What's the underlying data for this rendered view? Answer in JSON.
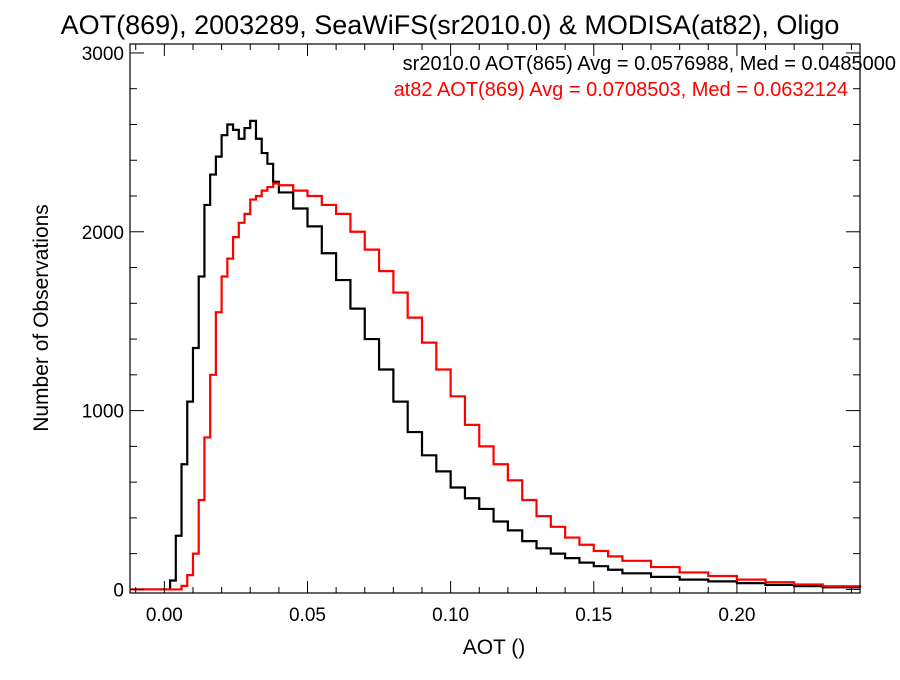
{
  "chart_data": {
    "type": "line",
    "title": "AOT(869), 2003289, SeaWiFS(sr2010.0) & MODISA(at82), Oligo",
    "xlabel": "AOT ()",
    "ylabel": "Number of Observations",
    "xlim": [
      -0.012,
      0.243
    ],
    "ylim": [
      -20,
      3050
    ],
    "x_ticks": [
      0.0,
      0.05,
      0.1,
      0.15,
      0.2
    ],
    "x_tick_labels": [
      "0.00",
      "0.05",
      "0.10",
      "0.15",
      "0.20"
    ],
    "y_ticks": [
      0,
      1000,
      2000,
      3000
    ],
    "y_tick_labels": [
      "0",
      "1000",
      "2000",
      "3000"
    ],
    "grid": false,
    "legend_position": "top-right",
    "series": [
      {
        "name": "sr2010.0 AOT(865) Avg = 0.0576988, Med = 0.0485000",
        "color": "#000000",
        "step": true,
        "x": [
          -0.012,
          0.0,
          0.002,
          0.004,
          0.006,
          0.008,
          0.01,
          0.012,
          0.014,
          0.016,
          0.018,
          0.02,
          0.022,
          0.024,
          0.026,
          0.028,
          0.03,
          0.032,
          0.034,
          0.036,
          0.038,
          0.04,
          0.045,
          0.05,
          0.055,
          0.06,
          0.065,
          0.07,
          0.075,
          0.08,
          0.085,
          0.09,
          0.095,
          0.1,
          0.105,
          0.11,
          0.115,
          0.12,
          0.125,
          0.13,
          0.135,
          0.14,
          0.145,
          0.15,
          0.155,
          0.16,
          0.17,
          0.18,
          0.19,
          0.2,
          0.21,
          0.22,
          0.23,
          0.243
        ],
        "y": [
          0,
          0,
          50,
          300,
          700,
          1050,
          1350,
          1750,
          2150,
          2320,
          2420,
          2540,
          2600,
          2570,
          2520,
          2580,
          2620,
          2520,
          2440,
          2380,
          2280,
          2220,
          2130,
          2030,
          1880,
          1730,
          1570,
          1400,
          1230,
          1050,
          880,
          750,
          660,
          570,
          510,
          450,
          380,
          330,
          270,
          230,
          200,
          175,
          150,
          130,
          110,
          90,
          70,
          55,
          45,
          35,
          25,
          18,
          12,
          8
        ]
      },
      {
        "name": "at82 AOT(869) Avg = 0.0708503, Med = 0.0632124",
        "color": "#ff0000",
        "step": true,
        "x": [
          -0.012,
          0.004,
          0.006,
          0.008,
          0.01,
          0.012,
          0.014,
          0.016,
          0.018,
          0.02,
          0.022,
          0.024,
          0.026,
          0.028,
          0.03,
          0.032,
          0.034,
          0.036,
          0.038,
          0.04,
          0.045,
          0.05,
          0.055,
          0.06,
          0.065,
          0.07,
          0.075,
          0.08,
          0.085,
          0.09,
          0.095,
          0.1,
          0.105,
          0.11,
          0.115,
          0.12,
          0.125,
          0.13,
          0.135,
          0.14,
          0.145,
          0.15,
          0.155,
          0.16,
          0.17,
          0.18,
          0.19,
          0.2,
          0.21,
          0.22,
          0.23,
          0.243
        ],
        "y": [
          0,
          0,
          20,
          80,
          200,
          500,
          850,
          1200,
          1550,
          1750,
          1850,
          1970,
          2050,
          2100,
          2180,
          2200,
          2230,
          2250,
          2270,
          2260,
          2230,
          2200,
          2150,
          2100,
          2000,
          1900,
          1780,
          1660,
          1520,
          1380,
          1230,
          1080,
          920,
          800,
          700,
          610,
          500,
          410,
          350,
          290,
          250,
          215,
          185,
          160,
          125,
          95,
          75,
          55,
          40,
          28,
          18,
          10
        ]
      }
    ]
  }
}
